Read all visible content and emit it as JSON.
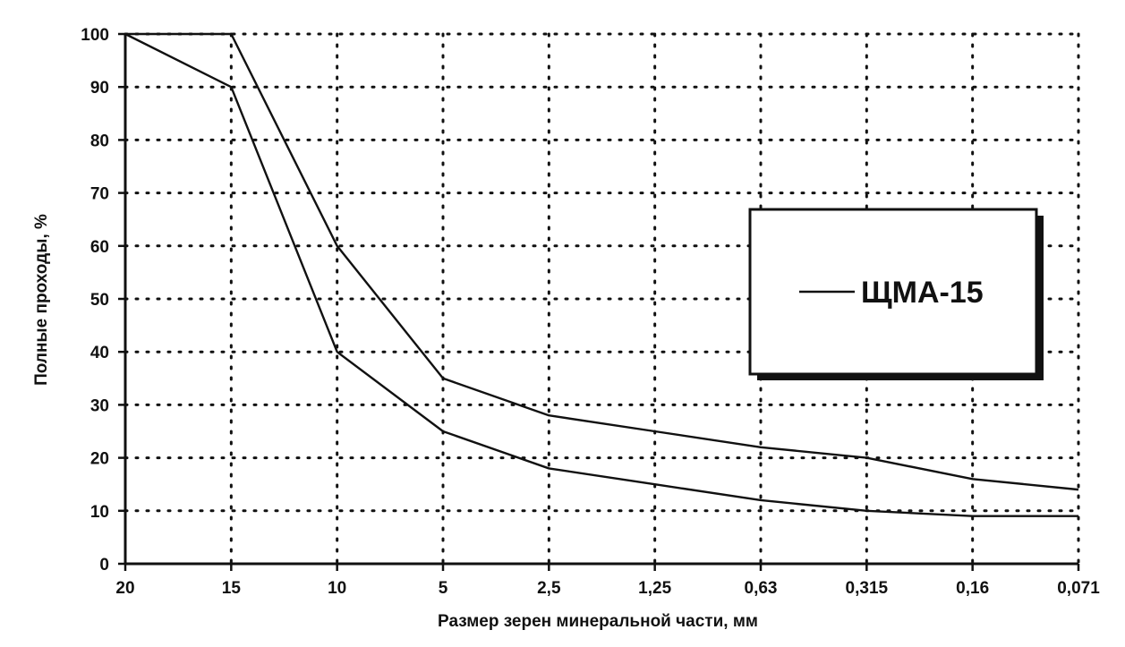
{
  "chart_data": {
    "type": "line",
    "title": "",
    "xlabel": "Размер зерен минеральной части, мм",
    "ylabel": "Полные проходы, %",
    "categories": [
      "20",
      "15",
      "10",
      "5",
      "2,5",
      "1,25",
      "0,63",
      "0,315",
      "0,16",
      "0,071"
    ],
    "ylim": [
      0,
      100
    ],
    "yticks": [
      0,
      10,
      20,
      30,
      40,
      50,
      60,
      70,
      80,
      90,
      100
    ],
    "grid": true,
    "legend": {
      "placement": "right",
      "entries": [
        "ЩМА-15"
      ]
    },
    "series": [
      {
        "name": "ЩМА-15",
        "values": [
          100,
          100,
          60,
          35,
          28,
          25,
          22,
          20,
          16,
          14
        ]
      },
      {
        "values": [
          100,
          90,
          40,
          25,
          18,
          15,
          12,
          10,
          9,
          9
        ]
      }
    ],
    "colors": {
      "line": "#111111",
      "grid": "#111111",
      "background": "#ffffff"
    }
  }
}
